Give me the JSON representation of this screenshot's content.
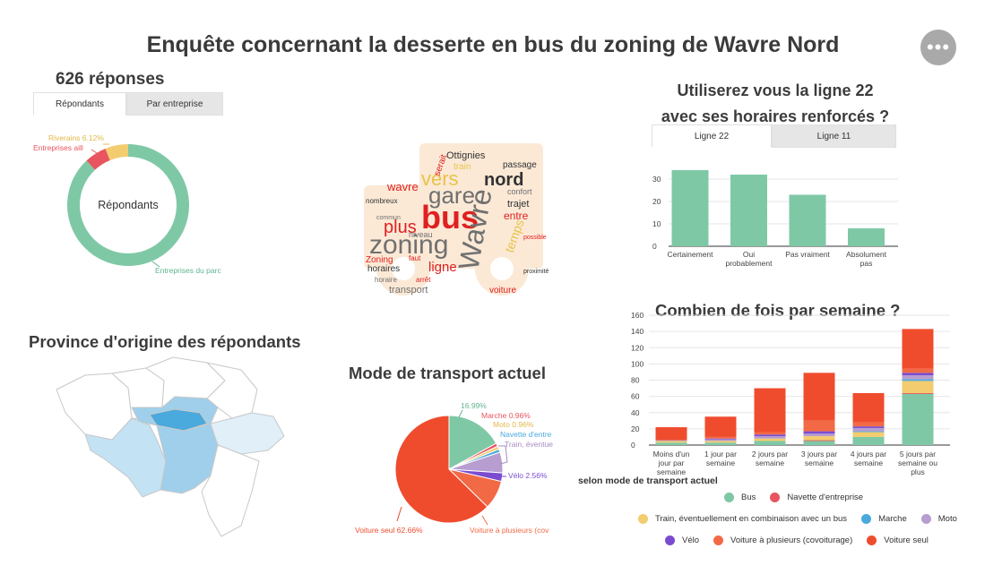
{
  "header": {
    "title": "Enquête concernant la desserte en bus du zoning de Wavre Nord",
    "more_icon": "more-horizontal-icon"
  },
  "responses": {
    "count_label": "626 réponses",
    "tabs": [
      "Répondants",
      "Par entreprise"
    ],
    "active_tab": 0
  },
  "colors": {
    "green": "#7fc8a6",
    "red": "#e8545f",
    "yellow": "#f2cc6f",
    "blue": "#4aa9dd",
    "lilac": "#b79dd0",
    "purple": "#7b4ccf",
    "orange": "#f26a45",
    "scarlet": "#ef4c2e"
  },
  "wordcloud": {
    "words": [
      "bus",
      "zoning",
      "Wavre",
      "gare",
      "nord",
      "vers",
      "plus",
      "ligne",
      "Ottignies",
      "train",
      "entre",
      "horaires",
      "transport",
      "Zoning",
      "voiture",
      "wavre",
      "trajet",
      "passage",
      "serait",
      "temps",
      "confort",
      "niveau",
      "arrêt",
      "faut",
      "horaire",
      "proximité",
      "nombreux",
      "possible",
      "commun"
    ]
  },
  "map": {
    "title": "Province d'origine des répondants"
  },
  "chart_data": [
    {
      "id": "respondents-donut",
      "type": "pie",
      "donut": true,
      "center_label": "Répondants",
      "slices": [
        {
          "label": "Entreprises du parc",
          "display": "Entreprises du parc",
          "value": 88.02,
          "color": "#7fc8a6"
        },
        {
          "label": "Entreprises ailleurs",
          "display": "Entreprises aill",
          "value": 5.86,
          "color": "#e8545f"
        },
        {
          "label": "Riverains",
          "display": "Riverains 6.12%",
          "value": 6.12,
          "color": "#f2cc6f"
        }
      ]
    },
    {
      "id": "ligne22",
      "type": "bar",
      "title_lines": [
        "Utiliserez vous la ligne 22",
        "avec ses horaires renforcés ?"
      ],
      "tabs": [
        "Ligne 22",
        "Ligne 11"
      ],
      "active_tab": 0,
      "categories": [
        [
          "Certainement"
        ],
        [
          "Oui",
          "probablement"
        ],
        [
          "Pas vraiment"
        ],
        [
          "Absolument",
          "pas"
        ]
      ],
      "values": [
        34,
        32,
        23,
        8
      ],
      "ylim": [
        0,
        40
      ],
      "yticks": [
        0,
        10,
        20,
        30
      ],
      "color": "#7fc8a6"
    },
    {
      "id": "mode-transport",
      "type": "pie",
      "title": "Mode de transport actuel",
      "slices": [
        {
          "label": "Bus",
          "display": "16.99%",
          "value": 16.99,
          "color": "#7fc8a6",
          "side": "right"
        },
        {
          "label": "Marche",
          "display": "Marche 0.96%",
          "value": 0.96,
          "color": "#e8545f",
          "side": "right"
        },
        {
          "label": "Moto",
          "display": "Moto 0.96%",
          "value": 0.96,
          "color": "#f2cc6f",
          "side": "right"
        },
        {
          "label": "Navette d'entreprise",
          "display": "Navette d'entre",
          "value": 0.96,
          "color": "#4aa9dd",
          "side": "right"
        },
        {
          "label": "Train, éventuellement en combinaison avec un bus",
          "display": "Train, éventue",
          "value": 6.23,
          "color": "#b79dd0",
          "side": "right"
        },
        {
          "label": "Vélo",
          "display": "Vélo 2.56%",
          "value": 2.56,
          "color": "#7b4ccf",
          "side": "right"
        },
        {
          "label": "Voiture à plusieurs (covoiturage)",
          "display": "Voiture à plusieurs (cov",
          "value": 8.68,
          "color": "#f26a45",
          "side": "bottom-right"
        },
        {
          "label": "Voiture seul",
          "display": "Voiture seul 62.66%",
          "value": 62.66,
          "color": "#ef4c2e",
          "side": "bottom-left"
        }
      ]
    },
    {
      "id": "frequence",
      "type": "bar",
      "stacked": true,
      "title": "Combien de fois par semaine ?",
      "subtitle": "selon mode de transport actuel",
      "categories": [
        [
          "Moins d'un",
          "jour par",
          "semaine"
        ],
        [
          "1 jour par",
          "semaine"
        ],
        [
          "2 jours par",
          "semaine"
        ],
        [
          "3 jours par",
          "semaine"
        ],
        [
          "4 jours par",
          "semaine"
        ],
        [
          "5 jours par",
          "semaine ou",
          "plus"
        ]
      ],
      "ylim": [
        0,
        160
      ],
      "yticks": [
        0,
        20,
        40,
        60,
        80,
        100,
        120,
        140,
        160
      ],
      "series": [
        {
          "name": "Bus",
          "color": "#7fc8a6",
          "values": [
            3,
            3,
            5,
            5,
            10,
            63
          ]
        },
        {
          "name": "Navette d'entreprise",
          "color": "#e8545f",
          "values": [
            0,
            0,
            0,
            1,
            0,
            1
          ]
        },
        {
          "name": "Train, éventuellement en combinaison avec un bus",
          "color": "#f2cc6f",
          "values": [
            2,
            2,
            3,
            5,
            6,
            15
          ]
        },
        {
          "name": "Marche",
          "color": "#4aa9dd",
          "values": [
            0,
            0,
            0,
            0,
            1,
            2
          ]
        },
        {
          "name": "Moto",
          "color": "#b79dd0",
          "values": [
            1,
            2,
            3,
            3,
            4,
            5
          ]
        },
        {
          "name": "Vélo",
          "color": "#7b4ccf",
          "values": [
            0,
            1,
            2,
            3,
            2,
            3
          ]
        },
        {
          "name": "Voiture à plusieurs (covoiturage)",
          "color": "#f26a45",
          "values": [
            0,
            2,
            3,
            13,
            5,
            5
          ]
        },
        {
          "name": "Voiture seul",
          "color": "#ef4c2e",
          "values": [
            16,
            25,
            54,
            59,
            36,
            49
          ]
        }
      ],
      "legend_rows": [
        [
          "Bus",
          "Navette d'entreprise"
        ],
        [
          "Train, éventuellement en combinaison avec un bus",
          "Marche",
          "Moto"
        ],
        [
          "Vélo",
          "Voiture à plusieurs (covoiturage)",
          "Voiture seul"
        ]
      ]
    }
  ]
}
